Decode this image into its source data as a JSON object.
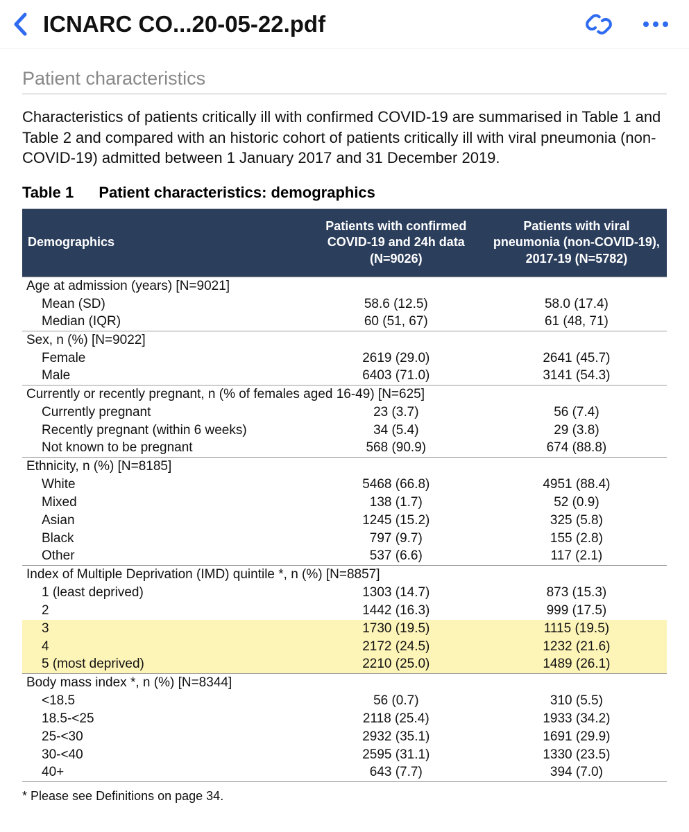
{
  "toolbar": {
    "file_title": "ICNARC CO...20-05-22.pdf",
    "back_color": "#2e6bf0",
    "link_color": "#2e6bf0",
    "more_color": "#2e6bf0"
  },
  "section_title": "Patient characteristics",
  "intro": "Characteristics of patients critically ill with confirmed COVID-19 are summarised in Table 1 and Table 2 and compared with an historic cohort of patients critically ill with viral pneumonia (non-COVID-19) admitted between 1 January 2017 and 31 December 2019.",
  "table": {
    "caption_num": "Table 1",
    "caption_name": "Patient characteristics: demographics",
    "header_bg": "#2b3e5c",
    "header_fg": "#ffffff",
    "highlight_bg": "#fdf4b8",
    "columns": [
      "Demographics",
      "Patients with confirmed COVID-19 and 24h data (N=9026)",
      "Patients with viral pneumonia (non-COVID-19), 2017-19 (N=5782)"
    ],
    "rows": [
      {
        "type": "group",
        "label": "Age at admission (years) [N=9021]",
        "c1": "",
        "c2": ""
      },
      {
        "type": "sub",
        "label": "Mean (SD)",
        "c1": "58.6 (12.5)",
        "c2": "58.0 (17.4)"
      },
      {
        "type": "sub",
        "label": "Median (IQR)",
        "c1": "60 (51, 67)",
        "c2": "61 (48, 71)"
      },
      {
        "type": "group",
        "label": "Sex, n (%) [N=9022]",
        "c1": "",
        "c2": ""
      },
      {
        "type": "sub",
        "label": "Female",
        "c1": "2619 (29.0)",
        "c2": "2641 (45.7)"
      },
      {
        "type": "sub",
        "label": "Male",
        "c1": "6403 (71.0)",
        "c2": "3141 (54.3)"
      },
      {
        "type": "group",
        "label": "Currently or recently pregnant, n (% of females aged 16-49) [N=625]",
        "c1": "",
        "c2": ""
      },
      {
        "type": "sub",
        "label": "Currently pregnant",
        "c1": "23 (3.7)",
        "c2": "56 (7.4)"
      },
      {
        "type": "sub",
        "label": "Recently pregnant (within 6 weeks)",
        "c1": "34 (5.4)",
        "c2": "29 (3.8)"
      },
      {
        "type": "sub",
        "label": "Not known to be pregnant",
        "c1": "568 (90.9)",
        "c2": "674 (88.8)"
      },
      {
        "type": "group",
        "label": "Ethnicity, n (%) [N=8185]",
        "c1": "",
        "c2": ""
      },
      {
        "type": "sub",
        "label": "White",
        "c1": "5468 (66.8)",
        "c2": "4951 (88.4)"
      },
      {
        "type": "sub",
        "label": "Mixed",
        "c1": "138 (1.7)",
        "c2": "52 (0.9)"
      },
      {
        "type": "sub",
        "label": "Asian",
        "c1": "1245 (15.2)",
        "c2": "325 (5.8)"
      },
      {
        "type": "sub",
        "label": "Black",
        "c1": "797 (9.7)",
        "c2": "155 (2.8)"
      },
      {
        "type": "sub",
        "label": "Other",
        "c1": "537 (6.6)",
        "c2": "117 (2.1)"
      },
      {
        "type": "group",
        "label": "Index of Multiple Deprivation (IMD) quintile *, n (%) [N=8857]",
        "c1": "",
        "c2": ""
      },
      {
        "type": "sub",
        "label": "1 (least deprived)",
        "c1": "1303 (14.7)",
        "c2": "873 (15.3)"
      },
      {
        "type": "sub",
        "label": "2",
        "c1": "1442 (16.3)",
        "c2": "999 (17.5)"
      },
      {
        "type": "sub",
        "label": "3",
        "c1": "1730 (19.5)",
        "c2": "1115 (19.5)",
        "hl": true
      },
      {
        "type": "sub",
        "label": "4",
        "c1": "2172 (24.5)",
        "c2": "1232 (21.6)",
        "hl": true
      },
      {
        "type": "sub",
        "label": "5 (most deprived)",
        "c1": "2210 (25.0)",
        "c2": "1489 (26.1)",
        "hl": true
      },
      {
        "type": "group",
        "label": "Body mass index *, n (%) [N=8344]",
        "c1": "",
        "c2": ""
      },
      {
        "type": "sub",
        "label": "<18.5",
        "c1": "56 (0.7)",
        "c2": "310 (5.5)"
      },
      {
        "type": "sub",
        "label": "18.5-<25",
        "c1": "2118 (25.4)",
        "c2": "1933 (34.2)"
      },
      {
        "type": "sub",
        "label": "25-<30",
        "c1": "2932 (35.1)",
        "c2": "1691 (29.9)"
      },
      {
        "type": "sub",
        "label": "30-<40",
        "c1": "2595 (31.1)",
        "c2": "1330 (23.5)"
      },
      {
        "type": "sub",
        "label": "40+",
        "c1": "643 (7.7)",
        "c2": "394 (7.0)",
        "last": true
      }
    ]
  },
  "footnote": "* Please see Definitions on page 34."
}
